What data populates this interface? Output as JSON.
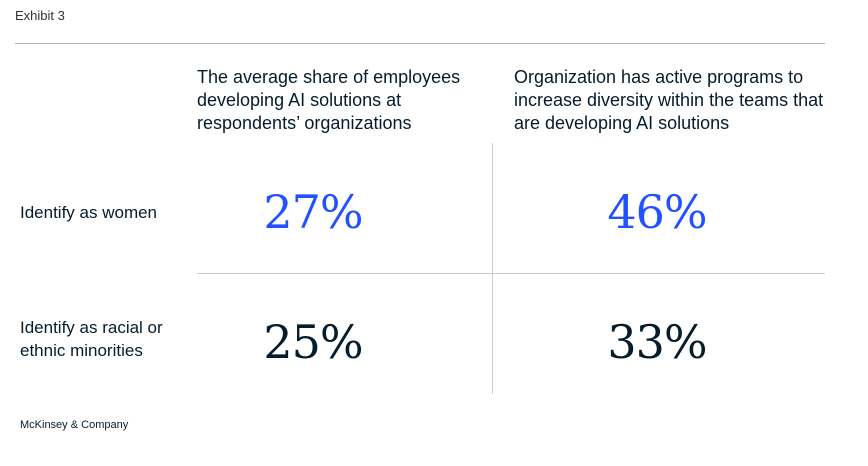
{
  "exhibit_label": "Exhibit 3",
  "logo_text": "McKinsey & Company",
  "colors": {
    "highlight": "#2251ff",
    "dark": "#051c2c",
    "rule": "#cccccc"
  },
  "chart_data": {
    "type": "table",
    "columns": [
      "The average share of employees developing AI solutions at respondents’ organizations",
      "Organization has active programs to increase diversity within the teams that are developing AI solutions"
    ],
    "rows": [
      {
        "label": "Identify as women",
        "values": [
          27,
          46
        ],
        "display": [
          "27%",
          "46%"
        ],
        "highlighted": true
      },
      {
        "label": "Identify as racial or ethnic minorities",
        "values": [
          25,
          33
        ],
        "display": [
          "25%",
          "33%"
        ],
        "highlighted": false
      }
    ],
    "unit": "%"
  }
}
